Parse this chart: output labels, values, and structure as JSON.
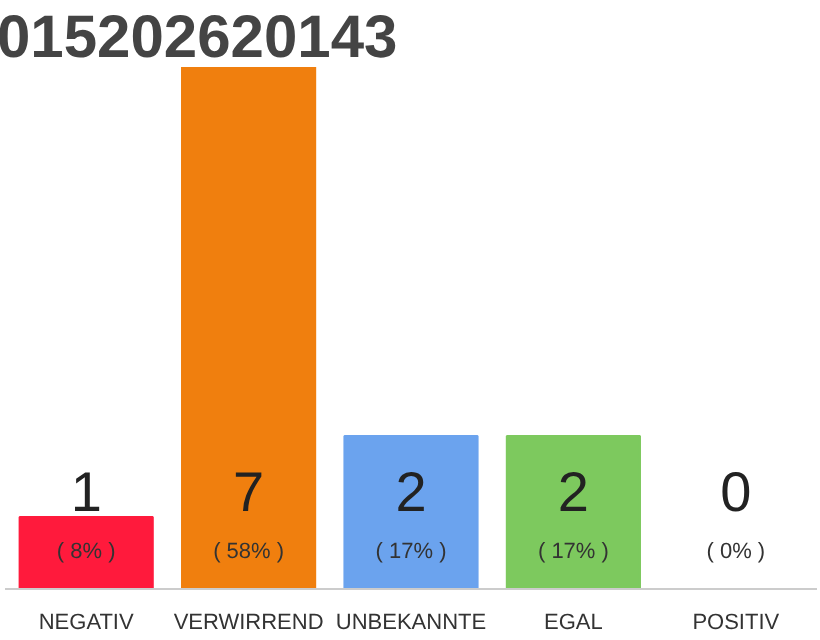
{
  "chart_data": {
    "type": "bar",
    "title": "015202620143",
    "categories": [
      "NEGATIV",
      "VERWIRREND",
      "UNBEKANNTE",
      "EGAL",
      "POSITIV"
    ],
    "values": [
      8,
      58,
      17,
      17,
      0
    ],
    "colors": [
      "#ff1a3c",
      "#f07f0e",
      "#6ba3ee",
      "#7dc95e",
      "#dddddd"
    ],
    "value_labels": [
      "( 8% )",
      "( 58% )",
      "( 17% )",
      "( 17% )",
      "( 0% )"
    ],
    "annotations": [
      "1",
      "7",
      "2",
      "2",
      "0"
    ],
    "grid": false,
    "tick_labels": "x"
  }
}
